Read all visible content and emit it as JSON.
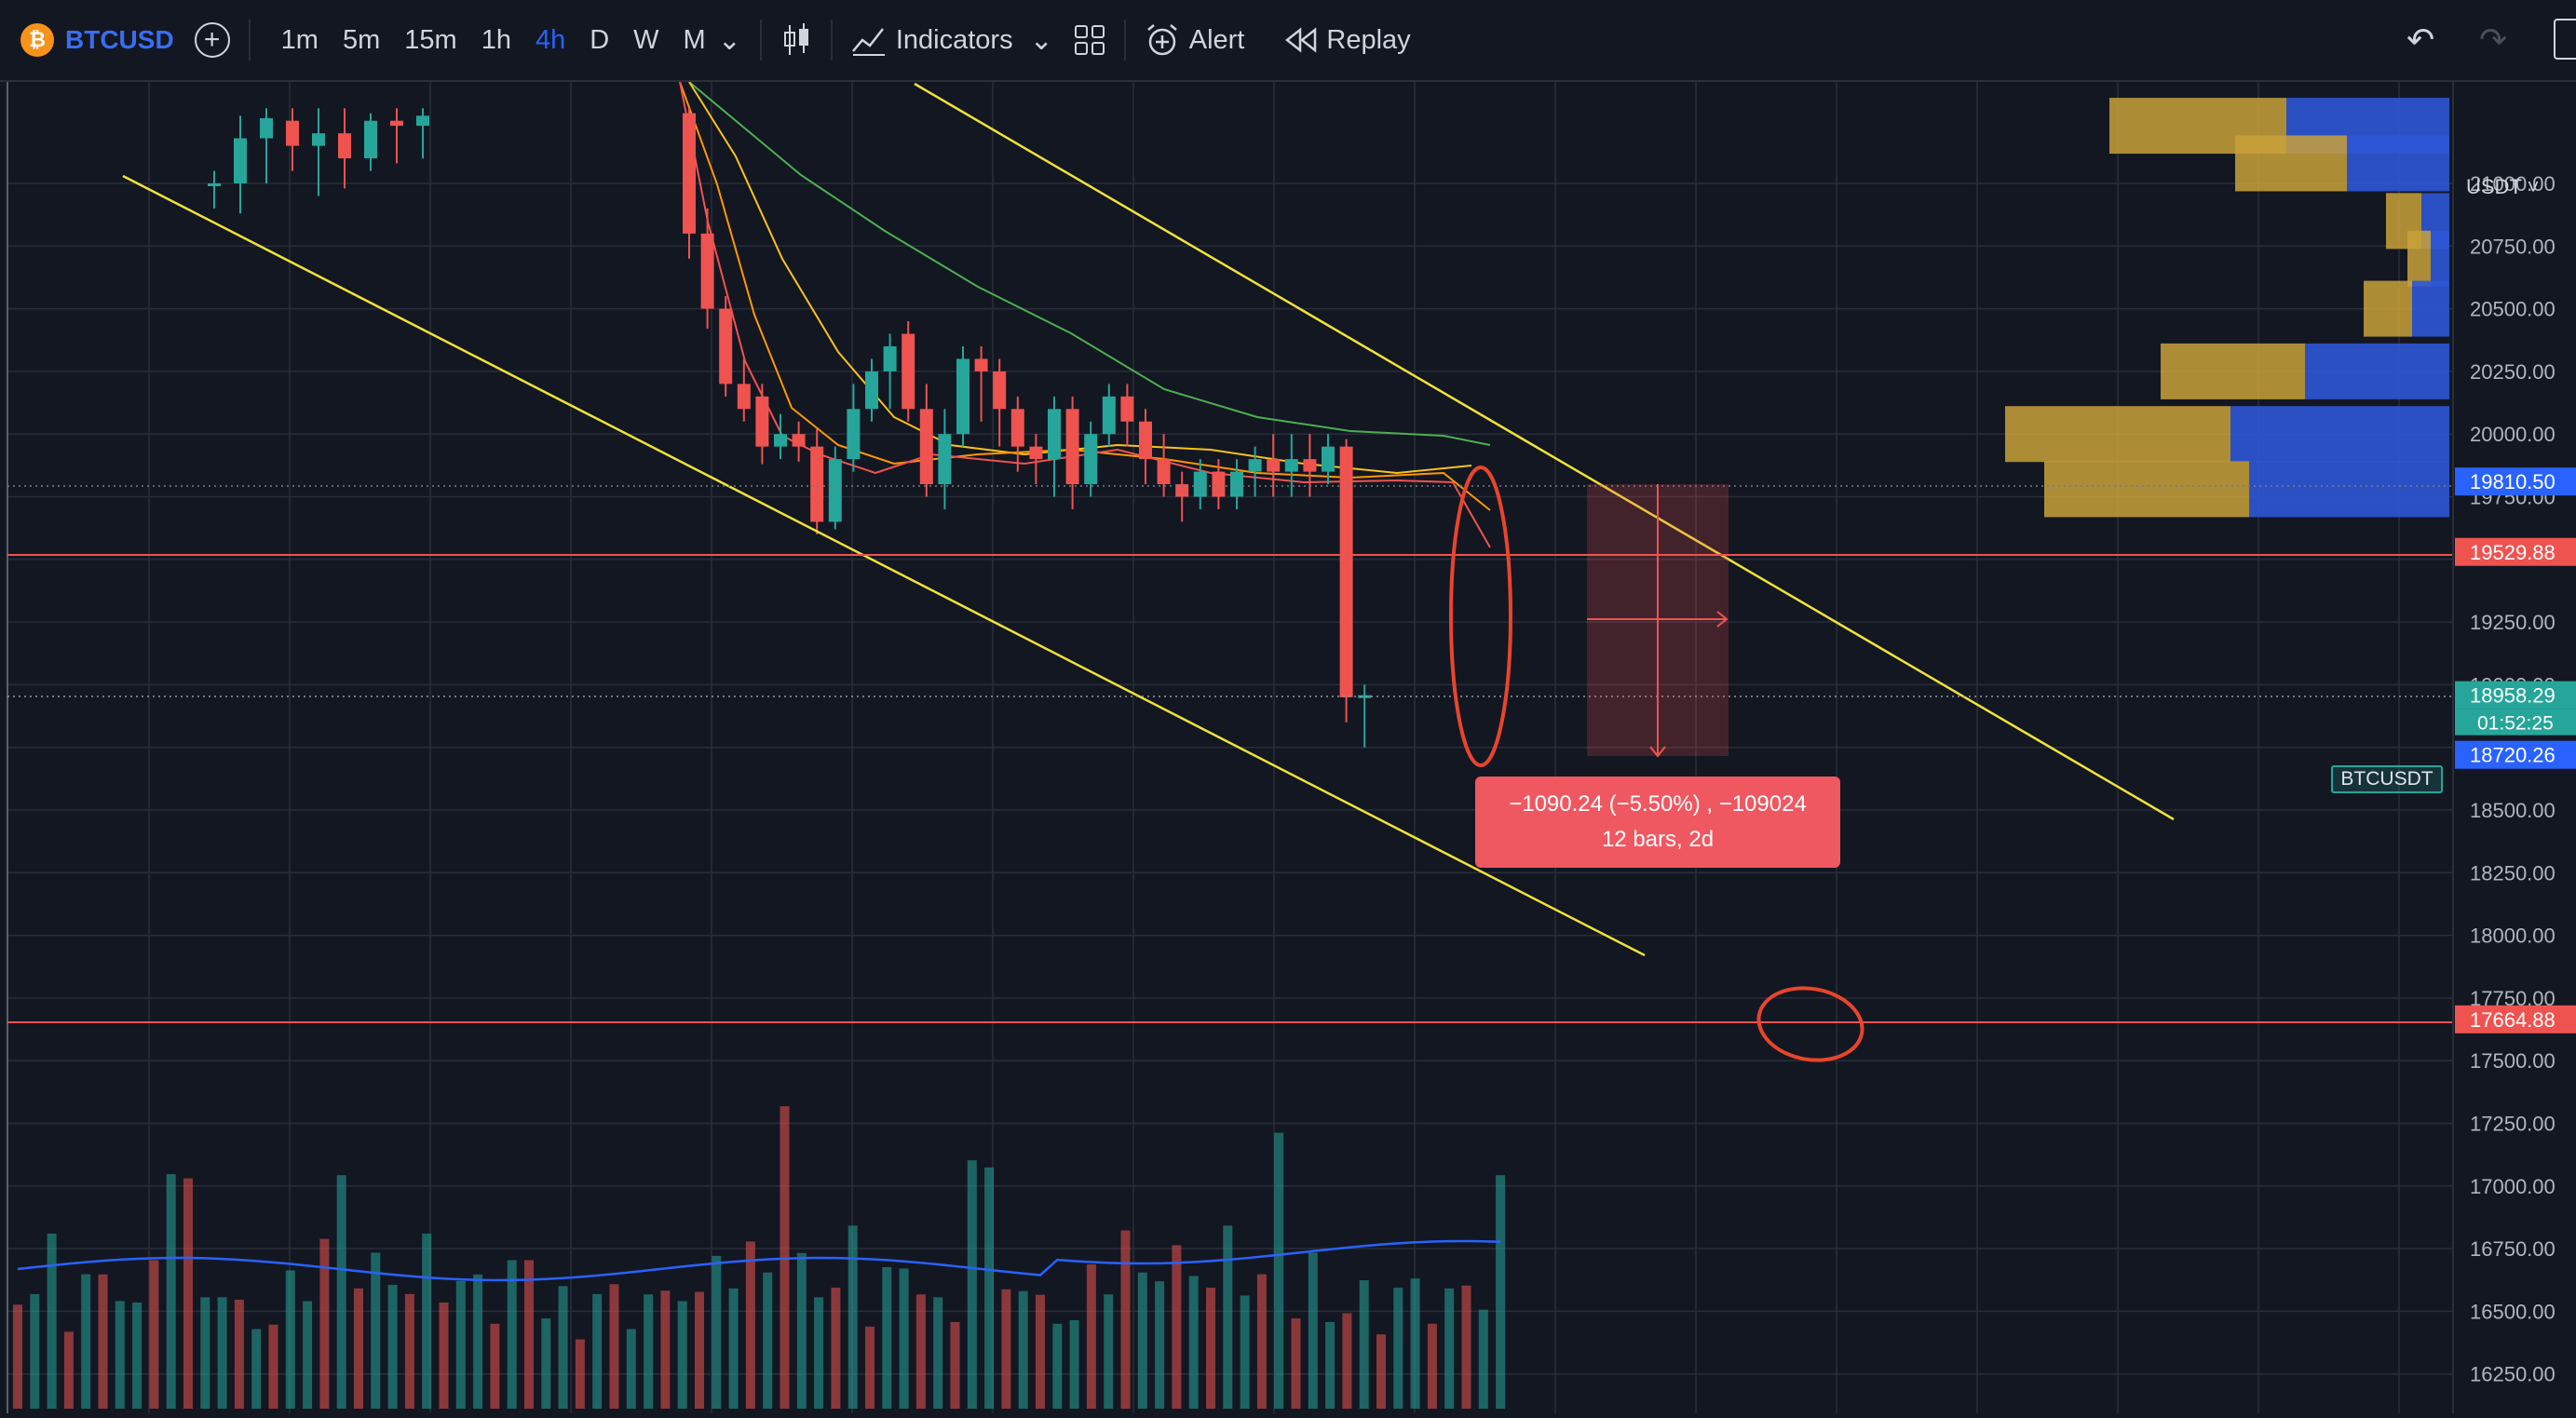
{
  "toolbar": {
    "symbol": "BTCUSD",
    "coin_glyph": "₿",
    "add_glyph": "+",
    "timeframes": [
      "1m",
      "5m",
      "15m",
      "1h",
      "4h",
      "D",
      "W",
      "M"
    ],
    "active_timeframe": "4h",
    "dropdown_glyph": "⌄",
    "indicators_label": "Indicators",
    "alert_label": "Alert",
    "replay_label": "Replay",
    "undo_glyph": "↶",
    "redo_glyph": "↷"
  },
  "price_axis": {
    "currency": "USDT ˅",
    "labels": [
      "21000.00",
      "20750.00",
      "20500.00",
      "20250.00",
      "20000.00",
      "19750.00",
      "19250.00",
      "19000.00",
      "18500.00",
      "18250.00",
      "18000.00",
      "17750.00",
      "17500.00",
      "17250.00",
      "17000.00",
      "16750.00",
      "16500.00",
      "16250.00"
    ],
    "highlight_upper": "19810.50",
    "highlight_red": "19529.88",
    "last_price": "18958.29",
    "countdown": "01:52:25",
    "highlight_lower": "18720.26",
    "support_price": "17664.88",
    "ticker_label": "BTCUSDT"
  },
  "measure": {
    "line1": "−1090.24 (−5.50%) , −109024",
    "line2": "12 bars, 2d"
  },
  "colors": {
    "up": "#26a69a",
    "down": "#ef5350",
    "trendline": "#f0e23c",
    "accent": "#2962ff",
    "background": "#131722",
    "grid": "#2a2e39",
    "annotation": "#e8452c"
  },
  "chart_data": {
    "type": "candlestick",
    "interval": "4h",
    "y_range": [
      16100,
      21300
    ],
    "candles": [
      [
        21000,
        21000,
        20900,
        21050
      ],
      [
        21000,
        21180,
        20880,
        21270
      ],
      [
        21180,
        21260,
        21000,
        21300
      ],
      [
        21250,
        21150,
        21050,
        21300
      ],
      [
        21150,
        21200,
        20950,
        21300
      ],
      [
        21200,
        21100,
        20980,
        21300
      ],
      [
        21100,
        21250,
        21050,
        21280
      ],
      [
        21250,
        21230,
        21080,
        21300
      ],
      [
        21230,
        21270,
        21100,
        21300
      ],
      [
        21280,
        20800,
        20700,
        21300
      ],
      [
        20800,
        20500,
        20420,
        20900
      ],
      [
        20500,
        20200,
        20150,
        20550
      ],
      [
        20200,
        20100,
        20050,
        20300
      ],
      [
        20150,
        19950,
        19880,
        20200
      ],
      [
        19950,
        20000,
        19900,
        20080
      ],
      [
        20000,
        19950,
        19890,
        20050
      ],
      [
        19950,
        19650,
        19600,
        20020
      ],
      [
        19650,
        19900,
        19620,
        19950
      ],
      [
        19900,
        20100,
        19850,
        20200
      ],
      [
        20100,
        20250,
        20050,
        20300
      ],
      [
        20250,
        20350,
        20100,
        20400
      ],
      [
        20400,
        20100,
        20050,
        20450
      ],
      [
        20100,
        19800,
        19750,
        20200
      ],
      [
        19800,
        20000,
        19700,
        20100
      ],
      [
        20000,
        20300,
        19950,
        20350
      ],
      [
        20300,
        20250,
        20050,
        20350
      ],
      [
        20250,
        20100,
        19950,
        20300
      ],
      [
        20100,
        19950,
        19850,
        20150
      ],
      [
        19950,
        19900,
        19800,
        20000
      ],
      [
        19900,
        20100,
        19750,
        20150
      ],
      [
        20100,
        19800,
        19700,
        20150
      ],
      [
        19800,
        20000,
        19750,
        20050
      ],
      [
        20000,
        20150,
        19950,
        20200
      ],
      [
        20150,
        20050,
        19950,
        20200
      ],
      [
        20050,
        19900,
        19800,
        20100
      ],
      [
        19900,
        19800,
        19750,
        20000
      ],
      [
        19800,
        19750,
        19650,
        19850
      ],
      [
        19750,
        19850,
        19700,
        19900
      ],
      [
        19850,
        19750,
        19700,
        19900
      ],
      [
        19750,
        19850,
        19700,
        19900
      ],
      [
        19850,
        19900,
        19750,
        19950
      ],
      [
        19900,
        19850,
        19750,
        20000
      ],
      [
        19850,
        19900,
        19750,
        20000
      ],
      [
        19900,
        19850,
        19750,
        20000
      ],
      [
        19850,
        19950,
        19800,
        20000
      ],
      [
        19950,
        18950,
        18850,
        19980
      ],
      [
        18950,
        18958,
        18750,
        19000
      ]
    ],
    "volume": [
      0.42,
      0.36,
      0.45,
      0.29,
      0.4,
      0.33,
      0.38,
      0.3,
      0.35,
      0.78,
      0.62,
      0.45,
      0.35,
      0.28,
      0.3,
      0.25,
      0.34,
      0.38,
      0.48,
      0.55,
      0.4,
      0.42,
      0.5,
      0.36,
      0.45,
      0.4,
      0.38,
      0.33,
      0.3,
      0.42,
      0.35,
      0.3,
      0.33,
      0.28,
      0.36,
      0.32,
      0.3,
      0.34,
      0.29,
      0.38,
      0.33,
      0.36,
      0.4,
      0.45,
      0.55,
      0.95,
      0.4
    ],
    "volume_profile": [
      {
        "price": 21230,
        "yellow": 190,
        "blue": 175
      },
      {
        "price": 21080,
        "yellow": 120,
        "blue": 110
      },
      {
        "price": 20850,
        "yellow": 38,
        "blue": 30
      },
      {
        "price": 20700,
        "yellow": 25,
        "blue": 20
      },
      {
        "price": 20500,
        "yellow": 52,
        "blue": 40
      },
      {
        "price": 20250,
        "yellow": 155,
        "blue": 155
      },
      {
        "price": 20000,
        "yellow": 242,
        "blue": 235
      },
      {
        "price": 19780,
        "yellow": 220,
        "blue": 215
      }
    ]
  }
}
